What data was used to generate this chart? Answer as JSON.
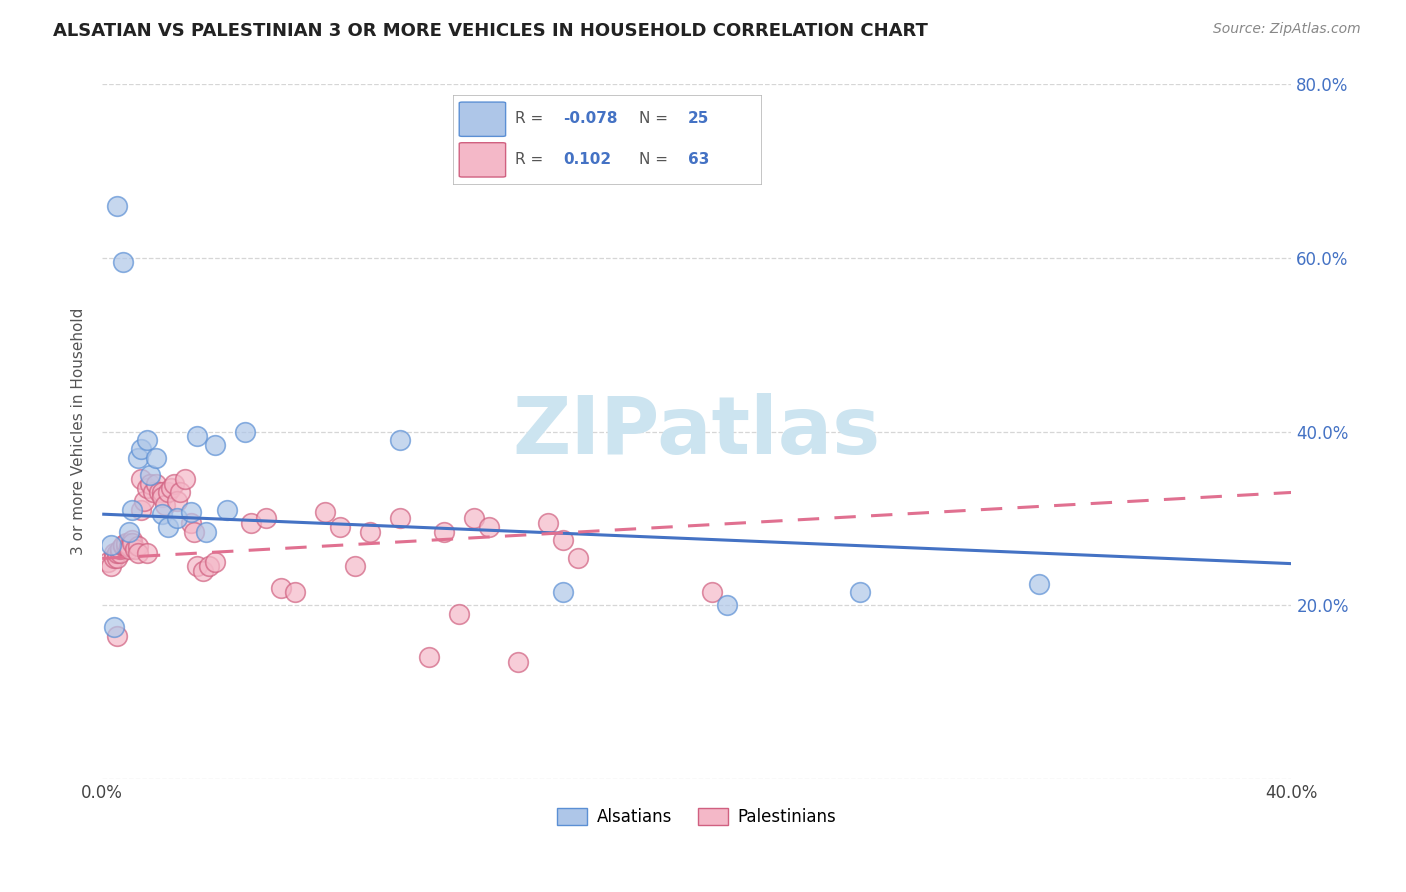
{
  "title": "ALSATIAN VS PALESTINIAN 3 OR MORE VEHICLES IN HOUSEHOLD CORRELATION CHART",
  "source": "Source: ZipAtlas.com",
  "ylabel": "3 or more Vehicles in Household",
  "xlim": [
    0.0,
    0.4
  ],
  "ylim": [
    0.0,
    0.8
  ],
  "xtick_positions": [
    0.0,
    0.1,
    0.2,
    0.3,
    0.4
  ],
  "xtick_labels": [
    "0.0%",
    "",
    "",
    "",
    "40.0%"
  ],
  "yticks_right": [
    0.2,
    0.4,
    0.6,
    0.8
  ],
  "ytick_labels_right": [
    "20.0%",
    "40.0%",
    "60.0%",
    "80.0%"
  ],
  "alsatian_color": "#aec6e8",
  "alsatian_line_color": "#4472c4",
  "alsatian_edge_color": "#5b8fd4",
  "palestinian_color": "#f4b8c8",
  "palestinian_line_color": "#e07090",
  "palestinian_edge_color": "#d06080",
  "watermark_text": "ZIPatlas",
  "watermark_color": "#cce4f0",
  "legend_R_alsatian": "-0.078",
  "legend_N_alsatian": "25",
  "legend_R_palestinian": "0.102",
  "legend_N_palestinian": "63",
  "alsatian_line_start_y": 0.305,
  "alsatian_line_end_y": 0.248,
  "palestinian_line_start_y": 0.254,
  "palestinian_line_end_y": 0.33,
  "alsatian_x": [
    0.003,
    0.005,
    0.007,
    0.009,
    0.01,
    0.012,
    0.013,
    0.015,
    0.016,
    0.018,
    0.02,
    0.022,
    0.025,
    0.03,
    0.032,
    0.035,
    0.038,
    0.042,
    0.048,
    0.1,
    0.155,
    0.21,
    0.255,
    0.315,
    0.004
  ],
  "alsatian_y": [
    0.27,
    0.66,
    0.595,
    0.285,
    0.31,
    0.37,
    0.38,
    0.39,
    0.35,
    0.37,
    0.305,
    0.29,
    0.3,
    0.308,
    0.395,
    0.285,
    0.385,
    0.31,
    0.4,
    0.39,
    0.215,
    0.2,
    0.215,
    0.225,
    0.175
  ],
  "palestinian_x": [
    0.002,
    0.003,
    0.004,
    0.004,
    0.005,
    0.005,
    0.006,
    0.006,
    0.007,
    0.007,
    0.008,
    0.008,
    0.009,
    0.009,
    0.01,
    0.01,
    0.011,
    0.012,
    0.012,
    0.013,
    0.013,
    0.014,
    0.015,
    0.015,
    0.016,
    0.017,
    0.018,
    0.019,
    0.02,
    0.02,
    0.021,
    0.022,
    0.023,
    0.024,
    0.025,
    0.026,
    0.028,
    0.03,
    0.031,
    0.032,
    0.034,
    0.036,
    0.038,
    0.05,
    0.055,
    0.06,
    0.065,
    0.075,
    0.08,
    0.085,
    0.09,
    0.1,
    0.11,
    0.115,
    0.12,
    0.125,
    0.13,
    0.14,
    0.15,
    0.155,
    0.16,
    0.205,
    0.005
  ],
  "palestinian_y": [
    0.25,
    0.245,
    0.26,
    0.255,
    0.255,
    0.26,
    0.26,
    0.265,
    0.268,
    0.27,
    0.268,
    0.272,
    0.268,
    0.265,
    0.275,
    0.272,
    0.265,
    0.268,
    0.26,
    0.345,
    0.31,
    0.32,
    0.335,
    0.26,
    0.34,
    0.33,
    0.34,
    0.33,
    0.33,
    0.325,
    0.315,
    0.33,
    0.335,
    0.34,
    0.32,
    0.33,
    0.345,
    0.295,
    0.285,
    0.245,
    0.24,
    0.245,
    0.25,
    0.295,
    0.3,
    0.22,
    0.215,
    0.308,
    0.29,
    0.245,
    0.285,
    0.3,
    0.14,
    0.285,
    0.19,
    0.3,
    0.29,
    0.135,
    0.295,
    0.275,
    0.255,
    0.215,
    0.165
  ]
}
